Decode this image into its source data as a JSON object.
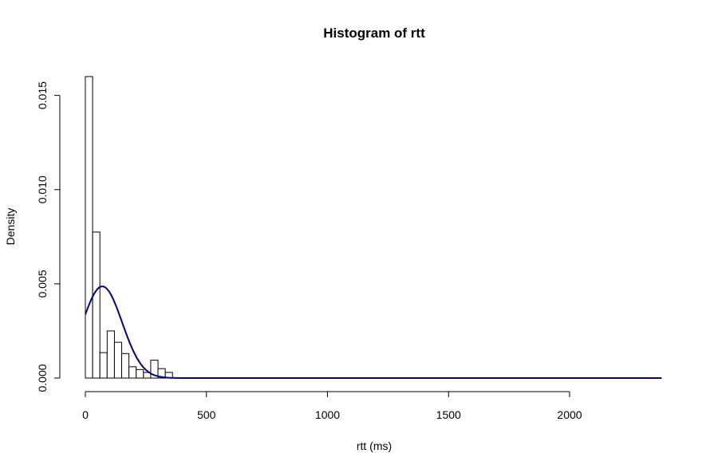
{
  "chart_data": {
    "type": "histogram",
    "title": "Histogram of rtt",
    "xlabel": "rtt (ms)",
    "ylabel": "Density",
    "xlim": [
      0,
      2380
    ],
    "ylim": [
      0,
      0.016
    ],
    "x_ticks": [
      0,
      500,
      1000,
      1500,
      2000
    ],
    "x_tick_labels": [
      "0",
      "500",
      "1000",
      "1500",
      "2000"
    ],
    "y_ticks": [
      0,
      0.005,
      0.01,
      0.015
    ],
    "y_tick_labels": [
      "0.000",
      "0.005",
      "0.010",
      "0.015"
    ],
    "bin_width": 30,
    "bins": [
      {
        "start": 0,
        "end": 30,
        "density": 0.016
      },
      {
        "start": 30,
        "end": 60,
        "density": 0.00775
      },
      {
        "start": 60,
        "end": 90,
        "density": 0.00135
      },
      {
        "start": 90,
        "end": 120,
        "density": 0.0025
      },
      {
        "start": 120,
        "end": 150,
        "density": 0.0019
      },
      {
        "start": 150,
        "end": 180,
        "density": 0.0013
      },
      {
        "start": 180,
        "end": 210,
        "density": 0.0006
      },
      {
        "start": 210,
        "end": 240,
        "density": 0.00045
      },
      {
        "start": 240,
        "end": 270,
        "density": 0.0003
      },
      {
        "start": 270,
        "end": 300,
        "density": 0.00095
      },
      {
        "start": 300,
        "end": 330,
        "density": 0.0005
      },
      {
        "start": 330,
        "end": 360,
        "density": 0.0003
      }
    ],
    "density_curve": {
      "type": "normal",
      "mean": 70,
      "sd": 82,
      "color": "#000080",
      "x_range": [
        0,
        2380
      ]
    }
  }
}
